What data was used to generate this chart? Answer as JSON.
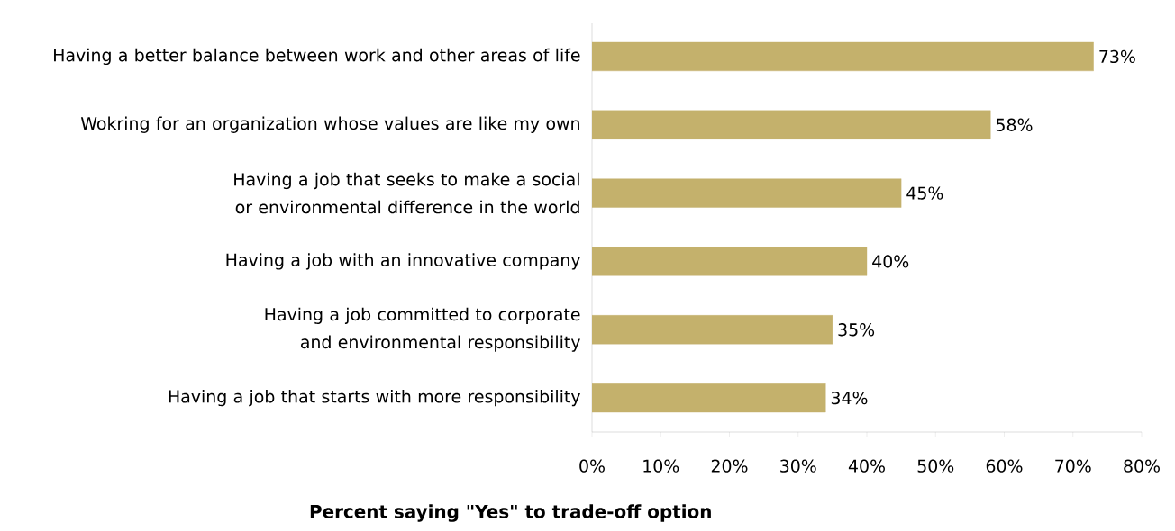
{
  "chart_data": {
    "type": "bar",
    "orientation": "horizontal",
    "categories": [
      "Having a better balance between work and other areas of life",
      "Wokring for an organization whose values are like my own",
      "Having a job that seeks to make a social or environmental difference in the world",
      "Having a job with an innovative company",
      "Having a job committed to corporate and environmental responsibility",
      "Having a job that starts with more responsibility"
    ],
    "values": [
      73,
      58,
      45,
      40,
      35,
      34
    ],
    "value_labels": [
      "73%",
      "58%",
      "45%",
      "40%",
      "35%",
      "34%"
    ],
    "color": "#c4b16c",
    "xlim": [
      0,
      80
    ],
    "xticks": [
      {
        "value": 0,
        "label": "0%"
      },
      {
        "value": 10,
        "label": "10%"
      },
      {
        "value": 20,
        "label": "20%"
      },
      {
        "value": 30,
        "label": "30%"
      },
      {
        "value": 40,
        "label": "40%"
      },
      {
        "value": 50,
        "label": "50%"
      },
      {
        "value": 60,
        "label": "60%"
      },
      {
        "value": 70,
        "label": "70%"
      },
      {
        "value": 80,
        "label": "80%"
      }
    ],
    "xlabel": "Percent saying \"Yes\" to trade-off option",
    "grid": false
  }
}
